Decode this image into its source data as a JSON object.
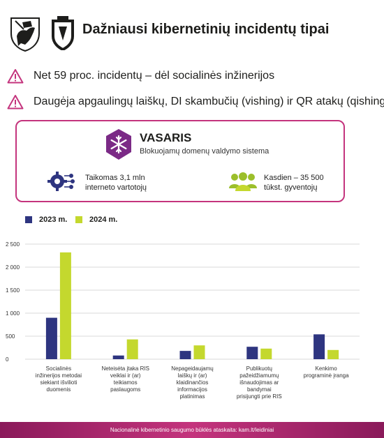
{
  "header": {
    "title": "Dažniausi kibernetinių incidentų tipai"
  },
  "bullets": [
    {
      "icon": "warning-triangle-icon",
      "text": "Net 59 proc. incidentų –  dėl socialinės inžinerijos"
    },
    {
      "icon": "warning-triangle-icon",
      "text": "Daugėja apgaulingų laiškų, DI skambučių (vishing) ir QR atakų (qishing)"
    }
  ],
  "card": {
    "title": "VASARIS",
    "subtitle": "Blokuojamų domenų valdymo sistema",
    "stat1": {
      "line1": "Taikomas 3,1 mln",
      "line2": "interneto vartotojų"
    },
    "stat2": {
      "line1": "Kasdien – 35 500",
      "line2": "tūkst. gyventojų"
    },
    "border_color": "#c4347d"
  },
  "footer": {
    "text": "Nacionalinė kibernetinio saugumo būklės ataskaita: kam.lt/leidiniai"
  },
  "chart_data": {
    "type": "bar",
    "categories": [
      [
        "Socialinės",
        "inžinerijos metodai",
        "siekiant išvilioti",
        "duomenis"
      ],
      [
        "Neteisėta įtaka RIS",
        "veiklai ir (ar)",
        "teikiamos",
        "paslaugoms"
      ],
      [
        "Nepageidaujamų",
        "laiškų ir (ar)",
        "klaidinančios",
        "informacijos",
        "platinimas"
      ],
      [
        "Publikuotų",
        "pažeidžiamumų",
        "išnaudojimas ar",
        "bandymai",
        "prisijungti prie RIS"
      ],
      [
        "Kenkimo",
        "programinė įranga"
      ]
    ],
    "series": [
      {
        "name": "2023 m.",
        "color": "#2e3580",
        "values": [
          900,
          80,
          180,
          270,
          540
        ]
      },
      {
        "name": "2024 m.",
        "color": "#c4d82e",
        "values": [
          2320,
          430,
          300,
          230,
          200
        ]
      }
    ],
    "ylim": [
      0,
      2500
    ],
    "yticks": [
      0,
      500,
      1000,
      1500,
      2000,
      2500
    ],
    "ytick_labels": [
      "0",
      "500",
      "1 000",
      "1 500",
      "2 000",
      "2 500"
    ],
    "grid": true,
    "legend": "top-left"
  }
}
